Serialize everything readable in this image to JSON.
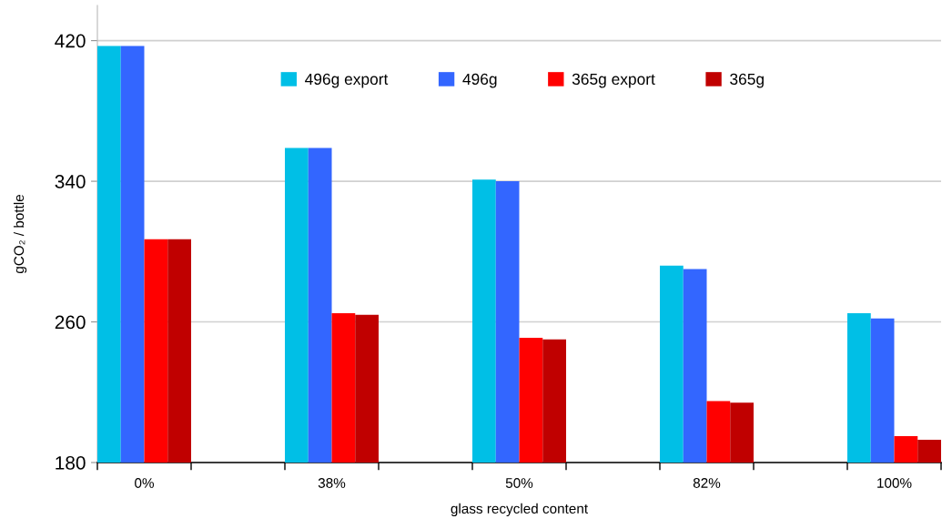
{
  "chart_data": {
    "type": "bar",
    "xlabel": "glass recycled content",
    "ylabel": "gCO₂ / bottle",
    "categories": [
      "0%",
      null,
      "38%",
      null,
      "50%",
      null,
      "82%",
      null,
      "100%"
    ],
    "series": [
      {
        "name": "496g export",
        "color": "#00bfe6",
        "values": [
          417,
          null,
          359,
          null,
          341,
          null,
          292,
          null,
          265
        ]
      },
      {
        "name": "496g",
        "color": "#3366ff",
        "values": [
          417,
          null,
          359,
          null,
          340,
          null,
          290,
          null,
          262
        ]
      },
      {
        "name": "365g export",
        "color": "#ff0000",
        "values": [
          307,
          null,
          265,
          null,
          251,
          null,
          215,
          null,
          195
        ]
      },
      {
        "name": "365g",
        "color": "#c00000",
        "values": [
          307,
          null,
          264,
          null,
          250,
          null,
          214,
          null,
          193
        ]
      }
    ],
    "ylim": [
      180,
      440
    ],
    "yticks": [
      180,
      260,
      340,
      420
    ],
    "grid": "y",
    "legend": "top"
  }
}
